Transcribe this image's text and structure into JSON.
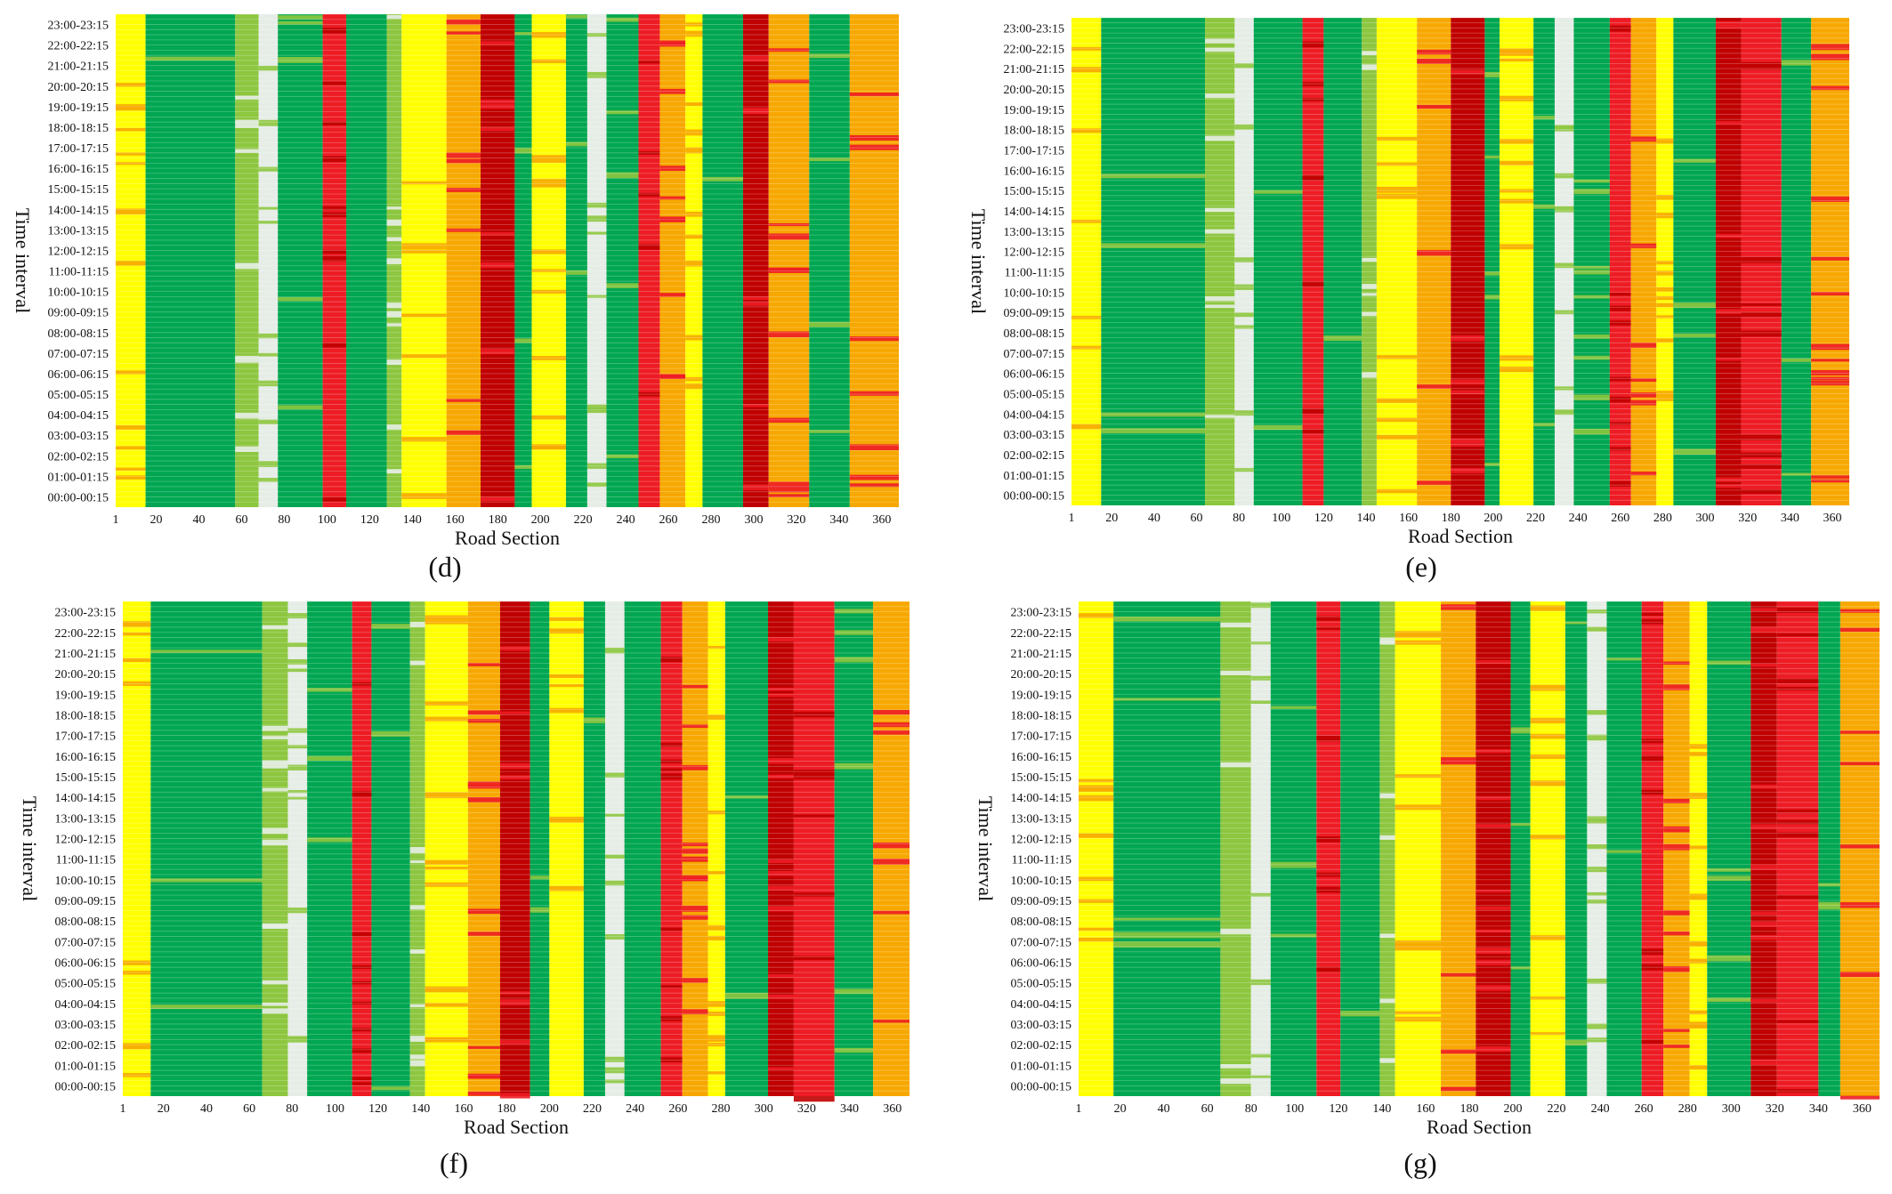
{
  "figure": {
    "panel_labels": [
      "(d)",
      "(e)",
      "(f)",
      "(g)"
    ]
  },
  "chart_data": [
    {
      "type": "heatmap",
      "panel": "(d)",
      "xlabel": "Road Section",
      "ylabel": "Time interval",
      "xlim": [
        1,
        368
      ],
      "x_ticks": [
        1,
        20,
        40,
        60,
        80,
        100,
        120,
        140,
        160,
        180,
        200,
        220,
        240,
        260,
        280,
        300,
        320,
        340,
        360
      ],
      "y_ticks": [
        "00:00-00:15",
        "01:00-01:15",
        "02:00-02:15",
        "03:00-03:15",
        "04:00-04:15",
        "05:00-05:15",
        "06:00-06:15",
        "07:00-07:15",
        "08:00-08:15",
        "09:00-09:15",
        "10:00-10:15",
        "11:00-11:15",
        "12:00-12:15",
        "13:00-13:15",
        "14:00-14:15",
        "15:00-15:15",
        "16:00-16:15",
        "17:00-17:15",
        "18:00-18:15",
        "19:00-19:15",
        "20:00-20:15",
        "21:00-21:15",
        "22:00-22:15",
        "23:00-23:15"
      ],
      "columns": [
        {
          "from": 1,
          "to": 15,
          "state": "Y"
        },
        {
          "from": 15,
          "to": 57,
          "state": "G"
        },
        {
          "from": 57,
          "to": 68,
          "state": "LG"
        },
        {
          "from": 68,
          "to": 77,
          "state": "W"
        },
        {
          "from": 77,
          "to": 98,
          "state": "G"
        },
        {
          "from": 98,
          "to": 109,
          "state": "R"
        },
        {
          "from": 109,
          "to": 128,
          "state": "G"
        },
        {
          "from": 128,
          "to": 135,
          "state": "LG"
        },
        {
          "from": 135,
          "to": 156,
          "state": "Y"
        },
        {
          "from": 156,
          "to": 172,
          "state": "O"
        },
        {
          "from": 172,
          "to": 188,
          "state": "DR"
        },
        {
          "from": 188,
          "to": 196,
          "state": "G"
        },
        {
          "from": 196,
          "to": 212,
          "state": "Y"
        },
        {
          "from": 212,
          "to": 222,
          "state": "G"
        },
        {
          "from": 222,
          "to": 231,
          "state": "W"
        },
        {
          "from": 231,
          "to": 246,
          "state": "G"
        },
        {
          "from": 246,
          "to": 256,
          "state": "R"
        },
        {
          "from": 256,
          "to": 268,
          "state": "O"
        },
        {
          "from": 268,
          "to": 276,
          "state": "Y"
        },
        {
          "from": 276,
          "to": 295,
          "state": "G"
        },
        {
          "from": 295,
          "to": 307,
          "state": "DR"
        },
        {
          "from": 307,
          "to": 326,
          "state": "O"
        },
        {
          "from": 326,
          "to": 345,
          "state": "G"
        },
        {
          "from": 345,
          "to": 368,
          "state": "O"
        }
      ]
    },
    {
      "type": "heatmap",
      "panel": "(e)",
      "xlabel": "Road Section",
      "ylabel": "Time interval",
      "xlim": [
        1,
        368
      ],
      "x_ticks": [
        1,
        20,
        40,
        60,
        80,
        100,
        120,
        140,
        160,
        180,
        200,
        220,
        240,
        260,
        280,
        300,
        320,
        340,
        360
      ],
      "y_ticks": [
        "00:00-00:15",
        "01:00-01:15",
        "02:00-02:15",
        "03:00-03:15",
        "04:00-04:15",
        "05:00-05:15",
        "06:00-06:15",
        "07:00-07:15",
        "08:00-08:15",
        "09:00-09:15",
        "10:00-10:15",
        "11:00-11:15",
        "12:00-12:15",
        "13:00-13:15",
        "14:00-14:15",
        "15:00-15:15",
        "16:00-16:15",
        "17:00-17:15",
        "18:00-18:15",
        "19:00-19:15",
        "20:00-20:15",
        "21:00-21:15",
        "22:00-22:15",
        "23:00-23:15"
      ],
      "columns": [
        {
          "from": 1,
          "to": 15,
          "state": "Y"
        },
        {
          "from": 15,
          "to": 64,
          "state": "G"
        },
        {
          "from": 64,
          "to": 78,
          "state": "LG"
        },
        {
          "from": 78,
          "to": 87,
          "state": "W"
        },
        {
          "from": 87,
          "to": 110,
          "state": "G"
        },
        {
          "from": 110,
          "to": 120,
          "state": "R"
        },
        {
          "from": 120,
          "to": 138,
          "state": "G"
        },
        {
          "from": 138,
          "to": 145,
          "state": "LG"
        },
        {
          "from": 145,
          "to": 164,
          "state": "Y"
        },
        {
          "from": 164,
          "to": 180,
          "state": "O"
        },
        {
          "from": 180,
          "to": 196,
          "state": "DR"
        },
        {
          "from": 196,
          "to": 203,
          "state": "G"
        },
        {
          "from": 203,
          "to": 219,
          "state": "Y"
        },
        {
          "from": 219,
          "to": 229,
          "state": "G"
        },
        {
          "from": 229,
          "to": 238,
          "state": "W"
        },
        {
          "from": 238,
          "to": 255,
          "state": "G"
        },
        {
          "from": 255,
          "to": 265,
          "state": "R"
        },
        {
          "from": 265,
          "to": 277,
          "state": "O"
        },
        {
          "from": 277,
          "to": 285,
          "state": "Y"
        },
        {
          "from": 285,
          "to": 305,
          "state": "G"
        },
        {
          "from": 305,
          "to": 317,
          "state": "DR"
        },
        {
          "from": 317,
          "to": 336,
          "state": "R"
        },
        {
          "from": 336,
          "to": 350,
          "state": "G"
        },
        {
          "from": 350,
          "to": 368,
          "state": "O"
        }
      ]
    },
    {
      "type": "heatmap",
      "panel": "(f)",
      "xlabel": "Road Section",
      "ylabel": "Time interval",
      "xlim": [
        1,
        368
      ],
      "x_ticks": [
        1,
        20,
        40,
        60,
        80,
        100,
        120,
        140,
        160,
        180,
        200,
        220,
        240,
        260,
        280,
        300,
        320,
        340,
        360
      ],
      "y_ticks": [
        "00:00-00:15",
        "01:00-01:15",
        "02:00-02:15",
        "03:00-03:15",
        "04:00-04:15",
        "05:00-05:15",
        "06:00-06:15",
        "07:00-07:15",
        "08:00-08:15",
        "09:00-09:15",
        "10:00-10:15",
        "11:00-11:15",
        "12:00-12:15",
        "13:00-13:15",
        "14:00-14:15",
        "15:00-15:15",
        "16:00-16:15",
        "17:00-17:15",
        "18:00-18:15",
        "19:00-19:15",
        "20:00-20:15",
        "21:00-21:15",
        "22:00-22:15",
        "23:00-23:15"
      ],
      "columns": [
        {
          "from": 1,
          "to": 14,
          "state": "Y"
        },
        {
          "from": 14,
          "to": 66,
          "state": "G"
        },
        {
          "from": 66,
          "to": 78,
          "state": "LG"
        },
        {
          "from": 78,
          "to": 87,
          "state": "W"
        },
        {
          "from": 87,
          "to": 108,
          "state": "G"
        },
        {
          "from": 108,
          "to": 117,
          "state": "R"
        },
        {
          "from": 117,
          "to": 135,
          "state": "G"
        },
        {
          "from": 135,
          "to": 142,
          "state": "LG"
        },
        {
          "from": 142,
          "to": 162,
          "state": "Y"
        },
        {
          "from": 162,
          "to": 177,
          "state": "O"
        },
        {
          "from": 177,
          "to": 191,
          "state": "DR"
        },
        {
          "from": 191,
          "to": 200,
          "state": "G"
        },
        {
          "from": 200,
          "to": 216,
          "state": "Y"
        },
        {
          "from": 216,
          "to": 226,
          "state": "G"
        },
        {
          "from": 226,
          "to": 235,
          "state": "W"
        },
        {
          "from": 235,
          "to": 252,
          "state": "G"
        },
        {
          "from": 252,
          "to": 262,
          "state": "R"
        },
        {
          "from": 262,
          "to": 274,
          "state": "O"
        },
        {
          "from": 274,
          "to": 282,
          "state": "Y"
        },
        {
          "from": 282,
          "to": 302,
          "state": "G"
        },
        {
          "from": 302,
          "to": 314,
          "state": "DR"
        },
        {
          "from": 314,
          "to": 333,
          "state": "R"
        },
        {
          "from": 333,
          "to": 351,
          "state": "G"
        },
        {
          "from": 351,
          "to": 368,
          "state": "O"
        }
      ]
    },
    {
      "type": "heatmap",
      "panel": "(g)",
      "xlabel": "Road Section",
      "ylabel": "Time interval",
      "xlim": [
        1,
        368
      ],
      "x_ticks": [
        1,
        20,
        40,
        60,
        80,
        100,
        120,
        140,
        160,
        180,
        200,
        220,
        240,
        260,
        280,
        300,
        320,
        340,
        360
      ],
      "y_ticks": [
        "00:00-00:15",
        "01:00-01:15",
        "02:00-02:15",
        "03:00-03:15",
        "04:00-04:15",
        "05:00-05:15",
        "06:00-06:15",
        "07:00-07:15",
        "08:00-08:15",
        "09:00-09:15",
        "10:00-10:15",
        "11:00-11:15",
        "12:00-12:15",
        "13:00-13:15",
        "14:00-14:15",
        "15:00-15:15",
        "16:00-16:15",
        "17:00-17:15",
        "18:00-18:15",
        "19:00-19:15",
        "20:00-20:15",
        "21:00-21:15",
        "22:00-22:15",
        "23:00-23:15"
      ],
      "columns": [
        {
          "from": 1,
          "to": 17,
          "state": "Y"
        },
        {
          "from": 17,
          "to": 66,
          "state": "G"
        },
        {
          "from": 66,
          "to": 80,
          "state": "LG"
        },
        {
          "from": 80,
          "to": 89,
          "state": "W"
        },
        {
          "from": 89,
          "to": 110,
          "state": "G"
        },
        {
          "from": 110,
          "to": 121,
          "state": "R"
        },
        {
          "from": 121,
          "to": 139,
          "state": "G"
        },
        {
          "from": 139,
          "to": 146,
          "state": "LG"
        },
        {
          "from": 146,
          "to": 167,
          "state": "Y"
        },
        {
          "from": 167,
          "to": 183,
          "state": "O"
        },
        {
          "from": 183,
          "to": 199,
          "state": "DR"
        },
        {
          "from": 199,
          "to": 208,
          "state": "G"
        },
        {
          "from": 208,
          "to": 224,
          "state": "Y"
        },
        {
          "from": 224,
          "to": 234,
          "state": "G"
        },
        {
          "from": 234,
          "to": 243,
          "state": "W"
        },
        {
          "from": 243,
          "to": 259,
          "state": "G"
        },
        {
          "from": 259,
          "to": 269,
          "state": "R"
        },
        {
          "from": 269,
          "to": 281,
          "state": "O"
        },
        {
          "from": 281,
          "to": 289,
          "state": "Y"
        },
        {
          "from": 289,
          "to": 309,
          "state": "G"
        },
        {
          "from": 309,
          "to": 321,
          "state": "DR"
        },
        {
          "from": 321,
          "to": 340,
          "state": "R"
        },
        {
          "from": 340,
          "to": 350,
          "state": "G"
        },
        {
          "from": 350,
          "to": 368,
          "state": "O"
        }
      ]
    }
  ],
  "state_colors": {
    "G": "#00a651",
    "LG": "#8dc63f",
    "Y": "#ffff00",
    "O": "#f7a800",
    "R": "#ed1c24",
    "DR": "#c00000",
    "W": "#e6ede6"
  }
}
